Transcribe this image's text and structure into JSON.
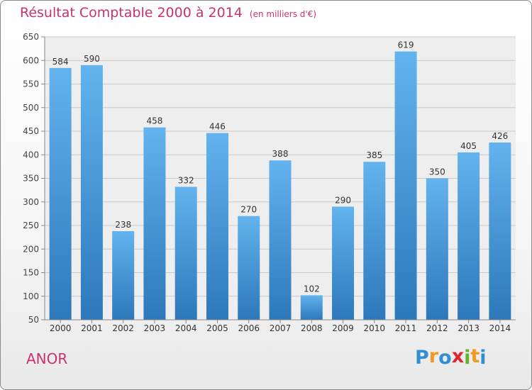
{
  "chart_data": {
    "type": "bar",
    "title": "Résultat Comptable 2000 à 2014",
    "unit": "(en milliers d'€)",
    "categories": [
      "2000",
      "2001",
      "2002",
      "2003",
      "2004",
      "2005",
      "2006",
      "2007",
      "2008",
      "2009",
      "2010",
      "2011",
      "2012",
      "2013",
      "2014"
    ],
    "values": [
      584,
      590,
      238,
      458,
      332,
      446,
      270,
      388,
      102,
      290,
      385,
      619,
      350,
      405,
      426
    ],
    "ylim": [
      50,
      650
    ],
    "yticks": [
      50,
      100,
      150,
      200,
      250,
      300,
      350,
      400,
      450,
      500,
      550,
      600,
      650
    ],
    "grid": true,
    "colors": {
      "bar_light": "#5fb0ec",
      "bar_dark": "#2f7bbd",
      "title": "#c8336f",
      "grid": "#cccccc"
    }
  },
  "location": "ANOR",
  "logo": {
    "letters": [
      "P",
      "r",
      "o",
      "x",
      "i",
      "t",
      "i"
    ],
    "colors": [
      "#2f8fd0",
      "#f29a1f",
      "#2f8fd0",
      "#e0262a",
      "#66b32e",
      "#f29a1f",
      "#2f8fd0"
    ]
  }
}
